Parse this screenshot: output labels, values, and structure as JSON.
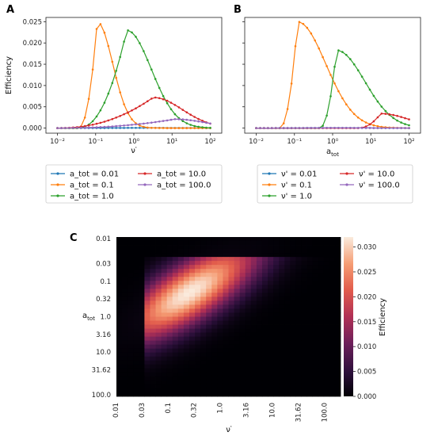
{
  "panels": {
    "a": "A",
    "b": "B",
    "c": "C"
  },
  "colors": {
    "blue": "#1f77b4",
    "orange": "#ff7f0e",
    "green": "#2ca02c",
    "red": "#d62728",
    "purple": "#9467bd"
  },
  "chart_data": [
    {
      "type": "line",
      "panel": "A",
      "xscale": "log",
      "xlim": [
        0.005,
        200
      ],
      "ylim": [
        -0.0012,
        0.026
      ],
      "xlabel": "ν'",
      "ylabel": "Efficiency",
      "xticks": [
        0.01,
        0.1,
        1,
        10,
        100
      ],
      "xtick_labels": [
        "10⁻²",
        "10⁻¹",
        "10⁰",
        "10¹",
        "10²"
      ],
      "yticks": [
        0,
        0.005,
        0.01,
        0.015,
        0.02,
        0.025
      ],
      "ytick_labels": [
        "0.000",
        "0.005",
        "0.010",
        "0.015",
        "0.020",
        "0.025"
      ],
      "legend_placement": "below",
      "legend": [
        "a_tot = 0.01",
        "a_tot = 0.1",
        "a_tot = 1.0",
        "a_tot = 10.0",
        "a_tot = 100.0"
      ],
      "series": [
        {
          "name": "a_tot = 0.01",
          "color": "#1f77b4",
          "peak_x": 1,
          "peak_y": 5e-05,
          "width": 1.0,
          "start": 0.01
        },
        {
          "name": "a_tot = 0.1",
          "color": "#ff7f0e",
          "peak_x": 0.11,
          "peak_y": 0.025,
          "width": 0.33,
          "start": 0.035
        },
        {
          "name": "a_tot = 1.0",
          "color": "#2ca02c",
          "peak_x": 0.65,
          "peak_y": 0.023,
          "width": 0.52,
          "start": 0.035
        },
        {
          "name": "a_tot = 10.0",
          "color": "#d62728",
          "peak_x": 3.2,
          "peak_y": 0.0072,
          "width": 0.62,
          "start": 0.01
        },
        {
          "name": "a_tot = 100.0",
          "color": "#9467bd",
          "peak_x": 12,
          "peak_y": 0.0021,
          "width": 0.65,
          "start": 0.01
        }
      ]
    },
    {
      "type": "line",
      "panel": "B",
      "xscale": "log",
      "xlim": [
        0.005,
        200
      ],
      "ylim": [
        -0.0012,
        0.026
      ],
      "xlabel": "a_tot",
      "xticks": [
        0.01,
        0.1,
        1,
        10,
        100
      ],
      "xtick_labels": [
        "10⁻²",
        "10⁻¹",
        "10⁰",
        "10¹",
        "10²"
      ],
      "yticks": [
        0,
        0.005,
        0.01,
        0.015,
        0.02,
        0.025
      ],
      "legend_placement": "below",
      "legend": [
        "ν' = 0.01",
        "ν' = 0.1",
        "ν' = 1.0",
        "ν' = 10.0",
        "ν' = 100.0"
      ],
      "series": [
        {
          "name": "ν' = 0.01",
          "color": "#1f77b4",
          "peak_x": 1,
          "peak_y": 5e-05,
          "start": 0.01
        },
        {
          "name": "ν' = 0.1",
          "color": "#ff7f0e",
          "peak_x": 0.12,
          "peak_y": 0.025,
          "start": 0.04
        },
        {
          "name": "ν' = 1.0",
          "color": "#2ca02c",
          "peak_x": 1.25,
          "peak_y": 0.0183,
          "start": 0.45
        },
        {
          "name": "ν' = 10.0",
          "color": "#d62728",
          "peak_x": 18,
          "peak_y": 0.0034,
          "start": 4.5
        },
        {
          "name": "ν' = 100.0",
          "color": "#9467bd",
          "peak_x": 1,
          "peak_y": 5e-05,
          "start": 0.01
        }
      ]
    },
    {
      "type": "heatmap",
      "panel": "C",
      "xlabel": "ν'",
      "ylabel": "a_tot",
      "xticks": [
        "0.01",
        "0.03",
        "0.1",
        "0.32",
        "1.0",
        "3.16",
        "10.0",
        "31.62",
        "100.0"
      ],
      "yticks": [
        "0.01",
        "0.03",
        "0.1",
        "0.32",
        "1.0",
        "3.16",
        "10.0",
        "31.62",
        "100.0"
      ],
      "colorbar": {
        "label": "Efficiency",
        "min": 0,
        "max": 0.032,
        "ticks": [
          "0.000",
          "0.005",
          "0.010",
          "0.015",
          "0.020",
          "0.025",
          "0.030"
        ]
      },
      "peak": {
        "nu": 0.2,
        "a_tot": 0.25,
        "value": 0.032
      }
    }
  ]
}
